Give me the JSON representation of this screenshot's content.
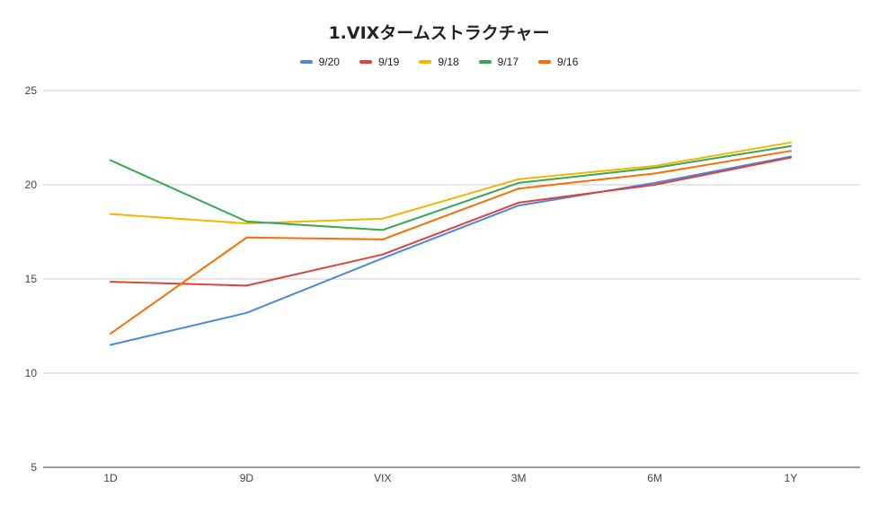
{
  "chart_data": {
    "type": "line",
    "title": "1.VIXタームストラクチャー",
    "categories": [
      "1D",
      "9D",
      "VIX",
      "3M",
      "6M",
      "1Y"
    ],
    "ylim": [
      5,
      25
    ],
    "yticks": [
      "5",
      "10",
      "15",
      "20",
      "25"
    ],
    "grid": true,
    "legend_position": "top-center",
    "series": [
      {
        "name": "9/20",
        "color": "#4a86e8",
        "values": [
          11.5,
          13.2,
          16.1,
          18.9,
          20.1,
          21.5
        ]
      },
      {
        "name": "9/19",
        "color": "#db4437",
        "values": [
          14.85,
          14.65,
          16.3,
          19.05,
          20.0,
          21.45
        ]
      },
      {
        "name": "9/18",
        "color": "#f4b400",
        "values": [
          18.45,
          17.95,
          18.2,
          20.3,
          21.0,
          22.25
        ]
      },
      {
        "name": "9/17",
        "color": "#34a853",
        "values": [
          21.3,
          18.05,
          17.6,
          20.1,
          20.9,
          22.05
        ]
      },
      {
        "name": "9/16",
        "color": "#ff6d01",
        "values": [
          12.1,
          17.2,
          17.1,
          19.8,
          20.6,
          21.8
        ]
      }
    ]
  }
}
